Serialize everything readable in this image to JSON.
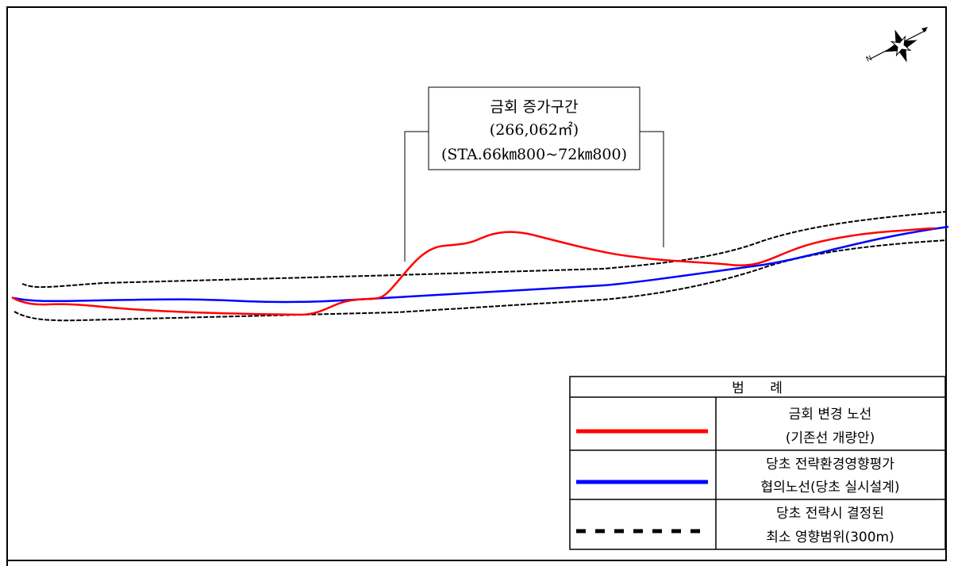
{
  "callout": {
    "line1": "금회 증가구간",
    "line2": "(266,062㎡)",
    "line3": "(STA.66㎞800~72㎞800)"
  },
  "legend": {
    "title": "범      례",
    "items": [
      {
        "line1": "금회 변경 노선",
        "line2": "(기존선 개량안)",
        "color": "#ff0000",
        "style": "solid"
      },
      {
        "line1": "당초 전략환경영향평가",
        "line2": "협의노선(당초 실시설계)",
        "color": "#0000ff",
        "style": "solid"
      },
      {
        "line1": "당초 전략시 결정된",
        "line2": "최소 영향범위(300m)",
        "color": "#000000",
        "style": "dashed"
      }
    ]
  },
  "colors": {
    "changed_route": "#ff0000",
    "original_route": "#0000ff",
    "impact_boundary": "#000000"
  },
  "icons": {
    "north_arrow": "compass-rose-icon"
  }
}
